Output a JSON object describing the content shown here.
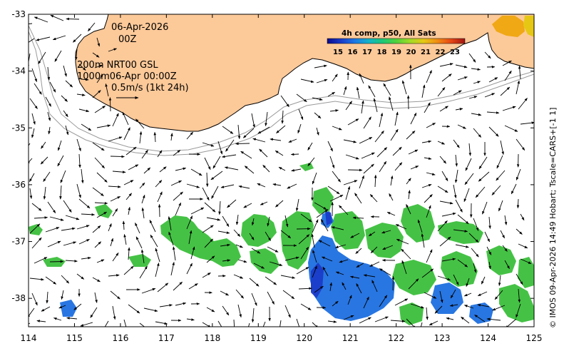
{
  "map": {
    "x_ticks": [
      "114",
      "115",
      "116",
      "117",
      "118",
      "119",
      "120",
      "121",
      "122",
      "123",
      "124",
      "125"
    ],
    "y_ticks": [
      "-33",
      "-34",
      "-35",
      "-36",
      "-37",
      "-38"
    ],
    "x_range": [
      114,
      125
    ],
    "y_range": [
      -38.5,
      -33
    ],
    "colors": {
      "land": "#fcc999",
      "coast_line": "#000000",
      "isobath": "#9a9a9a",
      "arrow": "#000000",
      "sst_green": "#3cbf3c",
      "sst_blue": "#1d6fe0"
    }
  },
  "date_label": {
    "line1": "06-Apr-2026",
    "line2": "00Z"
  },
  "legend_text": {
    "line1": "200m  NRT00 GSL",
    "line2": "1000m06-Apr 00:00Z",
    "line3": "0.5m/s (1kt 24h)"
  },
  "colorbar": {
    "title": "4h comp, p50, All Sats",
    "labels": [
      "15",
      "16",
      "17",
      "18",
      "19",
      "20",
      "21",
      "22",
      "23"
    ],
    "stops": [
      "#0a0a8c",
      "#1a3cc8",
      "#1e78e6",
      "#14b4c8",
      "#1ec878",
      "#50d23c",
      "#a0dc28",
      "#e6c814",
      "#f08c14",
      "#e64614",
      "#a01414"
    ]
  },
  "credit": "© IMOS 09-Apr-2026 14:49 Hobart; Tscale=CARS+[-1 1]"
}
